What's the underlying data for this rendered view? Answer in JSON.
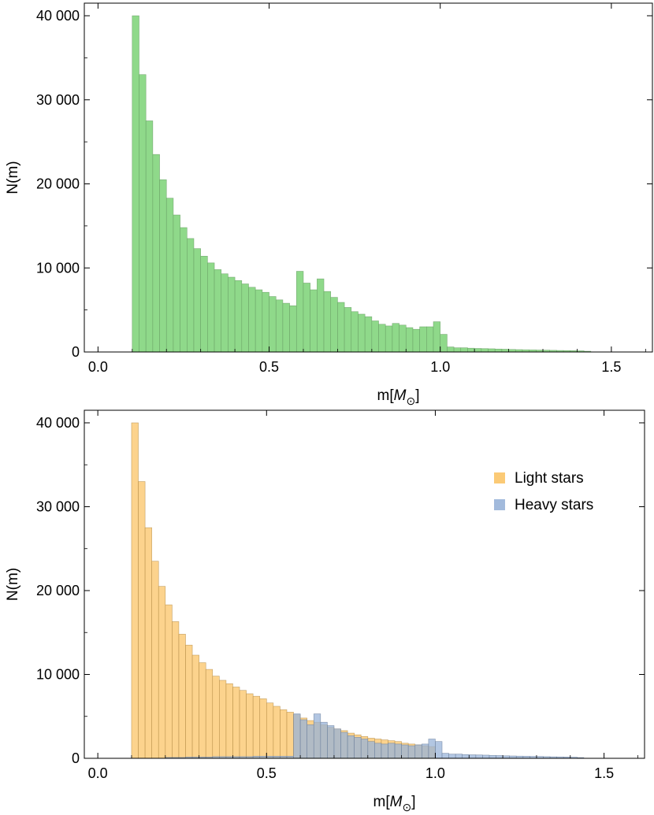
{
  "chart_data": [
    {
      "type": "histogram",
      "xlabel": "m[M⊙]",
      "xlabel_parts": {
        "base": "m[",
        "M": "M",
        "sub": "⊙",
        "close": "]"
      },
      "ylabel": "N(m)",
      "xlim": [
        -0.04,
        1.62
      ],
      "ylim": [
        0,
        41500
      ],
      "xticks": [
        0.0,
        0.5,
        1.0,
        1.5
      ],
      "xtick_labels": [
        "0.0",
        "0.5",
        "1.0",
        "1.5"
      ],
      "yticks": [
        0,
        10000,
        20000,
        30000,
        40000
      ],
      "ytick_labels": [
        "0",
        "10 000",
        "20 000",
        "30 000",
        "40 000"
      ],
      "bin_start": 0.1,
      "bin_width": 0.02,
      "series": [
        {
          "color": "#8fd98a",
          "values": [
            40000,
            33000,
            27500,
            23500,
            20500,
            18300,
            16300,
            14800,
            13500,
            12300,
            11400,
            10600,
            9800,
            9300,
            8900,
            8500,
            8100,
            7700,
            7400,
            7100,
            6600,
            6200,
            5800,
            5500,
            9600,
            8200,
            7400,
            8700,
            7200,
            6500,
            5900,
            5300,
            4800,
            4500,
            4200,
            3700,
            3300,
            3100,
            3400,
            3200,
            2900,
            2700,
            3000,
            3000,
            3600,
            2100,
            600,
            500,
            500,
            450,
            420,
            400,
            380,
            350,
            330,
            300,
            280,
            260,
            250,
            230,
            220,
            200,
            180,
            170,
            160,
            140,
            90
          ]
        }
      ]
    },
    {
      "type": "histogram",
      "xlabel": "m[M⊙]",
      "xlabel_parts": {
        "base": "m[",
        "M": "M",
        "sub": "⊙",
        "close": "]"
      },
      "ylabel": "N(m)",
      "xlim": [
        -0.04,
        1.62
      ],
      "ylim": [
        0,
        41500
      ],
      "xticks": [
        0.0,
        0.5,
        1.0,
        1.5
      ],
      "xtick_labels": [
        "0.0",
        "0.5",
        "1.0",
        "1.5"
      ],
      "yticks": [
        0,
        10000,
        20000,
        30000,
        40000
      ],
      "ytick_labels": [
        "0",
        "10 000",
        "20 000",
        "30 000",
        "40 000"
      ],
      "bin_start": 0.1,
      "bin_width": 0.02,
      "legend_position": "top-right",
      "series": [
        {
          "name": "Light stars",
          "color": "#fbc467",
          "values": [
            40000,
            33000,
            27500,
            23500,
            20500,
            18300,
            16300,
            14800,
            13500,
            12300,
            11400,
            10600,
            9800,
            9300,
            8900,
            8500,
            8100,
            7700,
            7400,
            7100,
            6600,
            6200,
            5800,
            5500,
            5200,
            4800,
            4500,
            4300,
            4000,
            3700,
            3500,
            3300,
            3000,
            2800,
            2600,
            2400,
            2300,
            2200,
            2100,
            2000,
            1800,
            1700,
            1600,
            1500,
            1400,
            0,
            0,
            0,
            0,
            0,
            0,
            0,
            0,
            0,
            0,
            0,
            0,
            0,
            0,
            0,
            0,
            0,
            0,
            0,
            0,
            0,
            0
          ]
        },
        {
          "name": "Heavy stars",
          "color": "#98b3d8",
          "values": [
            0,
            0,
            0,
            0,
            0,
            100,
            100,
            100,
            150,
            150,
            150,
            150,
            200,
            200,
            200,
            200,
            200,
            200,
            250,
            250,
            250,
            250,
            250,
            250,
            5300,
            4600,
            4000,
            5300,
            4300,
            3900,
            3500,
            3100,
            2700,
            2500,
            2300,
            2000,
            1800,
            1700,
            1800,
            1700,
            1600,
            1500,
            1600,
            1700,
            2300,
            2000,
            600,
            500,
            500,
            450,
            420,
            400,
            380,
            350,
            330,
            300,
            280,
            260,
            250,
            230,
            220,
            200,
            180,
            170,
            160,
            140,
            90
          ]
        }
      ]
    }
  ]
}
